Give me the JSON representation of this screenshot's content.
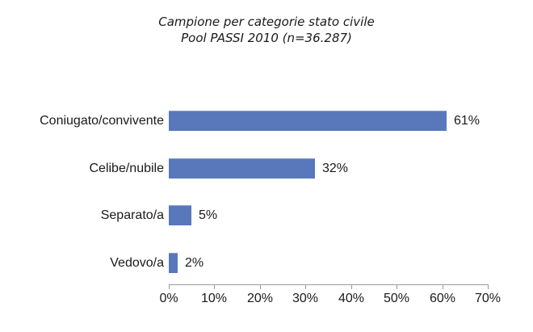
{
  "title": {
    "line1": "Campione per categorie stato civile",
    "line2": "Pool PASSI 2010 (n=36.287)"
  },
  "chart_data": {
    "type": "bar",
    "orientation": "horizontal",
    "title": "Campione per categorie stato civile",
    "subtitle": "Pool PASSI 2010 (n=36.287)",
    "categories": [
      "Coniugato/convivente",
      "Celibe/nubile",
      "Separato/a",
      "Vedovo/a"
    ],
    "values": [
      61,
      32,
      5,
      2
    ],
    "value_labels": [
      "61%",
      "32%",
      "5%",
      "2%"
    ],
    "x_tick_labels": [
      "0%",
      "10%",
      "20%",
      "30%",
      "40%",
      "50%",
      "60%",
      "70%"
    ],
    "x_tick_values": [
      0,
      10,
      20,
      30,
      40,
      50,
      60,
      70
    ],
    "xlim": [
      0,
      70
    ],
    "grid": false,
    "legend": "none",
    "bar_color": "#5878BB",
    "axis_color": "#9a9a9a",
    "text_color": "#1a1a1a"
  }
}
